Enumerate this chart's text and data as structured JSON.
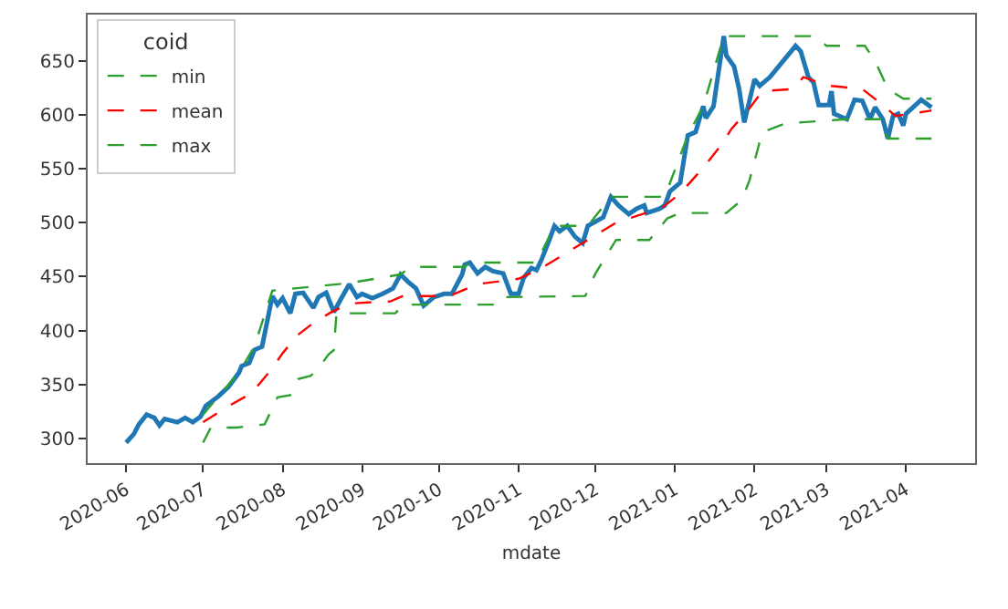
{
  "chart_data": {
    "type": "line",
    "xlabel": "mdate",
    "legend_title": "coid",
    "legend": "top left",
    "grid": false,
    "marker": "none",
    "xlim": [
      "2020-05-17",
      "2021-04-28"
    ],
    "ylim": [
      277,
      693
    ],
    "xticks": [
      {
        "value": "2020-06-01",
        "label": "2020-06"
      },
      {
        "value": "2020-07-01",
        "label": "2020-07"
      },
      {
        "value": "2020-08-01",
        "label": "2020-08"
      },
      {
        "value": "2020-09-01",
        "label": "2020-09"
      },
      {
        "value": "2020-10-01",
        "label": "2020-10"
      },
      {
        "value": "2020-11-01",
        "label": "2020-11"
      },
      {
        "value": "2020-12-01",
        "label": "2020-12"
      },
      {
        "value": "2021-01-01",
        "label": "2021-01"
      },
      {
        "value": "2021-02-01",
        "label": "2021-02"
      },
      {
        "value": "2021-03-01",
        "label": "2021-03"
      },
      {
        "value": "2021-04-01",
        "label": "2021-04"
      }
    ],
    "yticks": [
      300,
      350,
      400,
      450,
      500,
      550,
      600,
      650
    ],
    "series": [
      {
        "color": "#1f77b4",
        "line_style": "solid",
        "x": [
          "2020-06-01",
          "2020-06-04",
          "2020-06-06",
          "2020-06-09",
          "2020-06-12",
          "2020-06-14",
          "2020-06-16",
          "2020-06-21",
          "2020-06-24",
          "2020-06-27",
          "2020-06-30",
          "2020-07-02",
          "2020-07-07",
          "2020-07-11",
          "2020-07-15",
          "2020-07-16",
          "2020-07-19",
          "2020-07-21",
          "2020-07-24",
          "2020-07-28",
          "2020-07-30",
          "2020-08-01",
          "2020-08-04",
          "2020-08-06",
          "2020-08-09",
          "2020-08-13",
          "2020-08-15",
          "2020-08-18",
          "2020-08-21",
          "2020-08-23",
          "2020-08-27",
          "2020-08-30",
          "2020-09-01",
          "2020-09-05",
          "2020-09-09",
          "2020-09-13",
          "2020-09-16",
          "2020-09-19",
          "2020-09-22",
          "2020-09-25",
          "2020-09-29",
          "2020-10-03",
          "2020-10-06",
          "2020-10-10",
          "2020-10-11",
          "2020-10-13",
          "2020-10-16",
          "2020-10-19",
          "2020-10-22",
          "2020-10-26",
          "2020-10-29",
          "2020-11-01",
          "2020-11-03",
          "2020-11-06",
          "2020-11-08",
          "2020-11-10",
          "2020-11-13",
          "2020-11-15",
          "2020-11-17",
          "2020-11-20",
          "2020-11-23",
          "2020-11-26",
          "2020-11-28",
          "2020-12-04",
          "2020-12-07",
          "2020-12-10",
          "2020-12-14",
          "2020-12-17",
          "2020-12-20",
          "2020-12-21",
          "2020-12-26",
          "2020-12-28",
          "2020-12-30",
          "2021-01-03",
          "2021-01-06",
          "2021-01-09",
          "2021-01-12",
          "2021-01-13",
          "2021-01-16",
          "2021-01-20",
          "2021-01-21",
          "2021-01-24",
          "2021-01-26",
          "2021-01-28",
          "2021-02-01",
          "2021-02-03",
          "2021-02-07",
          "2021-02-17",
          "2021-02-19",
          "2021-02-22",
          "2021-02-24",
          "2021-02-26",
          "2021-03-02",
          "2021-03-03",
          "2021-03-04",
          "2021-03-09",
          "2021-03-12",
          "2021-03-15",
          "2021-03-18",
          "2021-03-20",
          "2021-03-23",
          "2021-03-25",
          "2021-03-27",
          "2021-03-29",
          "2021-03-31",
          "2021-04-01",
          "2021-04-07",
          "2021-04-11"
        ],
        "values": [
          296,
          304,
          313,
          322,
          319,
          312,
          318,
          315,
          319,
          315,
          320,
          330,
          339,
          348,
          361,
          367,
          370,
          382,
          385,
          432,
          424,
          430,
          416,
          434,
          435,
          421,
          431,
          435,
          417,
          426,
          443,
          431,
          434,
          430,
          434,
          439,
          452,
          445,
          439,
          423,
          431,
          434,
          434,
          452,
          461,
          463,
          453,
          459,
          455,
          453,
          434,
          434,
          449,
          458,
          456,
          466,
          484,
          497,
          492,
          497,
          487,
          481,
          497,
          505,
          524,
          516,
          508,
          513,
          516,
          509,
          513,
          516,
          529,
          537,
          581,
          584,
          608,
          597,
          608,
          673,
          655,
          645,
          624,
          593,
          633,
          627,
          635,
          664,
          659,
          635,
          630,
          609,
          609,
          622,
          601,
          596,
          614,
          613,
          596,
          607,
          596,
          578,
          599,
          601,
          590,
          601,
          614,
          607
        ]
      },
      {
        "name": "min",
        "color": "#2ca02c",
        "line_style": "dashed",
        "x": [
          "2020-07-01",
          "2020-07-04",
          "2020-07-14",
          "2020-07-25",
          "2020-07-30",
          "2020-08-04",
          "2020-08-07",
          "2020-08-12",
          "2020-08-15",
          "2020-08-19",
          "2020-08-21",
          "2020-08-22",
          "2020-09-14",
          "2020-09-17",
          "2020-10-25",
          "2020-10-27",
          "2020-11-27",
          "2020-12-01",
          "2020-12-09",
          "2020-12-22",
          "2020-12-29",
          "2021-01-03",
          "2021-01-21",
          "2021-01-27",
          "2021-01-30",
          "2021-02-04",
          "2021-02-13",
          "2021-03-09",
          "2021-03-23",
          "2021-03-25",
          "2021-04-11"
        ],
        "values": [
          296,
          310,
          310,
          313,
          338,
          340,
          355,
          358,
          365,
          378,
          382,
          416,
          416,
          424,
          424,
          431,
          432,
          453,
          484,
          484,
          504,
          509,
          509,
          521,
          539,
          584,
          592,
          596,
          596,
          578,
          578
        ]
      },
      {
        "name": "mean",
        "color": "#ff0000",
        "line_style": "dashed",
        "x": [
          "2020-07-01",
          "2020-07-11",
          "2020-07-20",
          "2020-07-28",
          "2020-08-01",
          "2020-08-07",
          "2020-08-13",
          "2020-08-20",
          "2020-08-27",
          "2020-09-03",
          "2020-09-12",
          "2020-09-17",
          "2020-09-26",
          "2020-10-05",
          "2020-10-16",
          "2020-11-01",
          "2020-11-10",
          "2020-12-09",
          "2020-12-27",
          "2021-01-03",
          "2021-01-12",
          "2021-01-19",
          "2021-01-23",
          "2021-01-30",
          "2021-02-04",
          "2021-02-16",
          "2021-02-20",
          "2021-03-02",
          "2021-03-15",
          "2021-03-22",
          "2021-03-28",
          "2021-04-11"
        ],
        "values": [
          315,
          330,
          342,
          365,
          379,
          396,
          407,
          417,
          425,
          426,
          427,
          432,
          432,
          432,
          443,
          448,
          458,
          500,
          514,
          527,
          551,
          572,
          587,
          606,
          622,
          624,
          635,
          627,
          624,
          611,
          599,
          604
        ]
      },
      {
        "name": "max",
        "color": "#2ca02c",
        "line_style": "dashed",
        "x": [
          "2020-07-01",
          "2020-07-07",
          "2020-07-15",
          "2020-07-21",
          "2020-07-28",
          "2020-08-27",
          "2020-09-16",
          "2020-09-20",
          "2020-10-11",
          "2020-10-13",
          "2020-11-08",
          "2020-11-15",
          "2020-11-28",
          "2020-12-07",
          "2020-12-28",
          "2021-01-06",
          "2021-01-12",
          "2021-01-20",
          "2021-02-25",
          "2021-03-01",
          "2021-03-16",
          "2021-03-20",
          "2021-03-25",
          "2021-03-31",
          "2021-04-11"
        ],
        "values": [
          322,
          339,
          361,
          385,
          437,
          444,
          452,
          459,
          459,
          463,
          463,
          497,
          497,
          524,
          524,
          581,
          608,
          673,
          673,
          664,
          664,
          650,
          624,
          615,
          615
        ]
      }
    ]
  }
}
